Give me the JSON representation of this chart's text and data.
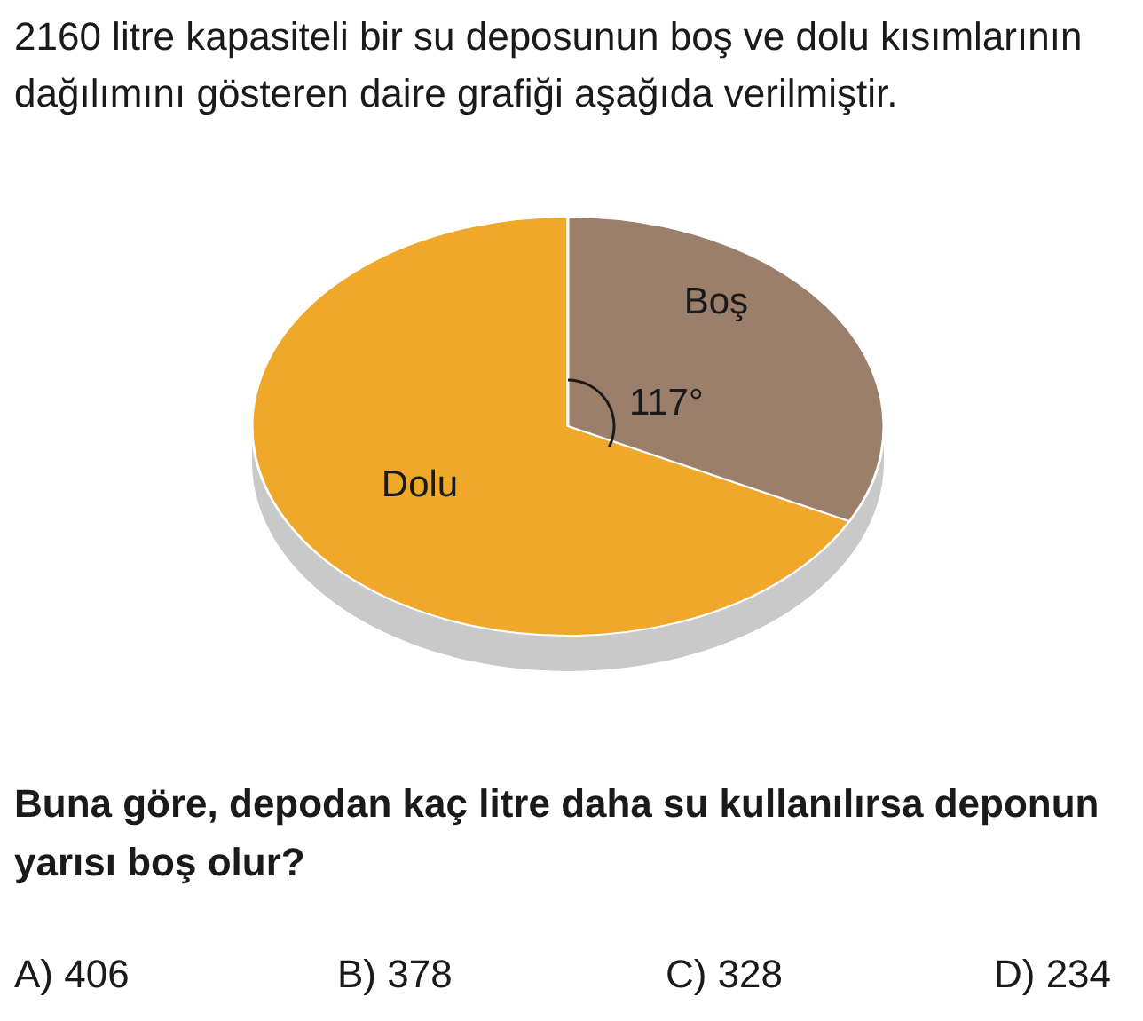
{
  "chart_data": {
    "type": "pie",
    "title": "2160 litre kapasiteli bir su deposunun boş ve dolu kısımlarının dağılımını gösteren daire grafiği aşağıda verilmiştir.",
    "categories": [
      "Dolu",
      "Boş"
    ],
    "values": [
      243,
      117
    ],
    "value_labels": [
      null,
      "117°"
    ],
    "colors": [
      "#f0a82b",
      "#9b7f6b"
    ],
    "annotations": [
      "Buna göre, depodan kaç litre daha su kullanılırsa deponun yarısı boş olur?",
      "A) 406",
      "B) 378",
      "C) 328",
      "D) 234"
    ]
  }
}
